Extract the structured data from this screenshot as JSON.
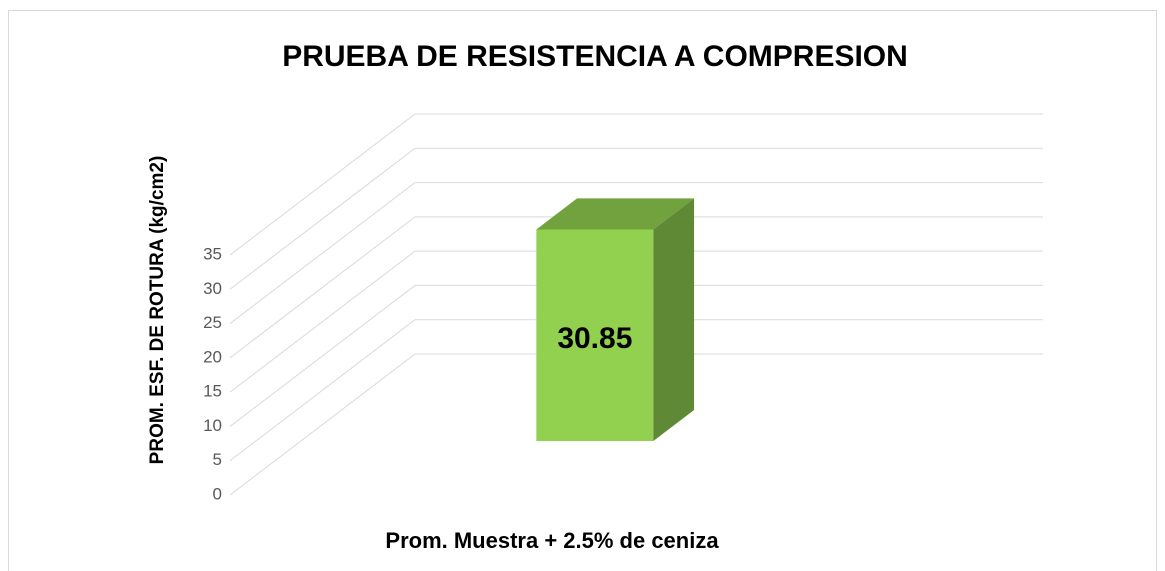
{
  "chart_data": {
    "type": "bar3d",
    "title": "PRUEBA DE RESISTENCIA A COMPRESION",
    "y_label": "PROM. ESF. DE ROTURA (kg/cm2)",
    "categories": [
      "Prom. Muestra + 2.5% de ceniza"
    ],
    "values": [
      30.85
    ],
    "color": "#92d050",
    "ylim": [
      0,
      35
    ],
    "yticks": [
      0,
      5,
      10,
      15,
      20,
      25,
      30,
      35
    ],
    "grid": true
  }
}
